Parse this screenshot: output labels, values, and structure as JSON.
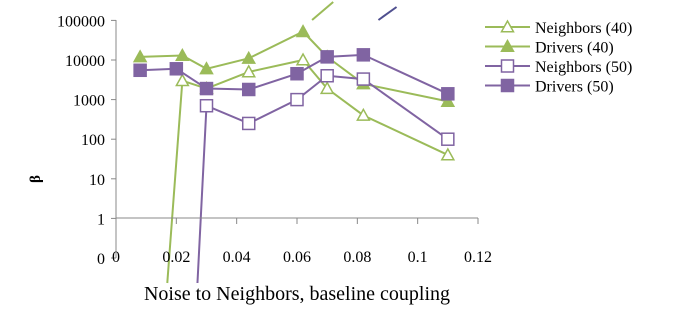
{
  "chart_data": {
    "type": "line",
    "title": "",
    "xlabel": "Noise to Neighbors, baseline coupling",
    "ylabel": "β",
    "xlim": [
      0,
      0.12
    ],
    "x_ticks": [
      "0",
      "0.02",
      "0.04",
      "0.06",
      "0.08",
      "0.1",
      "0.12"
    ],
    "y_scale": "log",
    "y_ticks": [
      "0",
      "1",
      "10",
      "100",
      "1000",
      "10000",
      "100000"
    ],
    "legend_position": "right",
    "grid": false,
    "series": [
      {
        "name": "Neighbors (40)",
        "color": "#9BBB59",
        "marker": "triangle-open",
        "x": [
          0.022,
          0.03,
          0.044,
          0.062,
          0.07,
          0.082,
          0.11
        ],
        "y": [
          3000,
          1900,
          5000,
          10000,
          1900,
          400,
          40
        ],
        "tail_to_zero_x": 0.017
      },
      {
        "name": "Drivers (40)",
        "color": "#9BBB59",
        "marker": "triangle-filled",
        "x": [
          0.008,
          0.022,
          0.03,
          0.044,
          0.062,
          0.07,
          0.082,
          0.11
        ],
        "y": [
          12000,
          13000,
          6000,
          11000,
          52000,
          12000,
          2500,
          900
        ]
      },
      {
        "name": "Neighbors (50)",
        "color": "#8064A2",
        "marker": "square-open",
        "x": [
          0.03,
          0.044,
          0.06,
          0.07,
          0.082,
          0.11
        ],
        "y": [
          700,
          250,
          1000,
          4000,
          3300,
          100
        ],
        "tail_to_zero_x": 0.027
      },
      {
        "name": "Drivers (50)",
        "color": "#8064A2",
        "marker": "square-filled",
        "x": [
          0.008,
          0.02,
          0.03,
          0.044,
          0.06,
          0.07,
          0.082,
          0.11
        ],
        "y": [
          5500,
          6000,
          1900,
          1800,
          4500,
          12000,
          13500,
          1400
        ]
      }
    ]
  }
}
